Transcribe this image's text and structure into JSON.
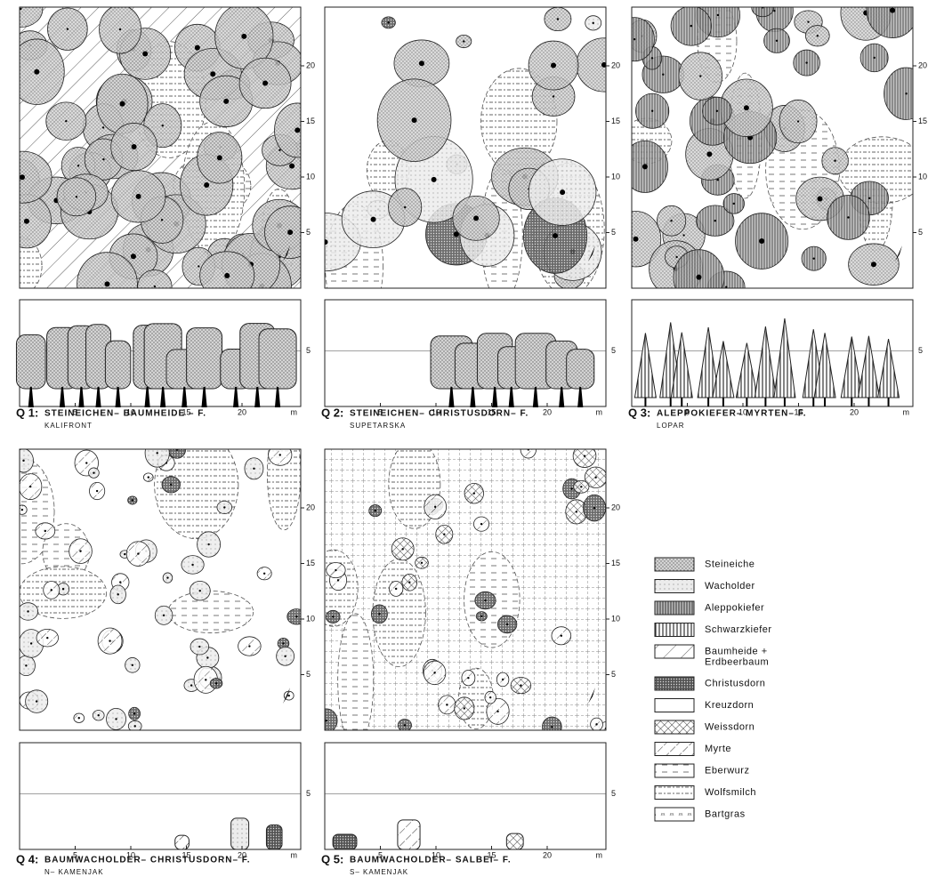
{
  "panels": [
    {
      "label": "Q 1:",
      "title": "STEINEICHEN– BAUMHEIDE – F.",
      "location": "KALIFRONT"
    },
    {
      "label": "Q 2:",
      "title": "STEINEICHEN– CHRISTUSDORN– F.",
      "location": "SUPETARSKA"
    },
    {
      "label": "Q 3:",
      "title": "ALEPPOKIEFER– MYRTEN– F.",
      "location": "LOPAR"
    },
    {
      "label": "Q 4:",
      "title": "BAUMWACHOLDER– CHRISTUSDORN– F.",
      "location": "N– KAMENJAK"
    },
    {
      "label": "Q 5:",
      "title": "BAUMWACHOLDER– SALBEI– F.",
      "location": "S– KAMENJAK"
    }
  ],
  "plan_ticks": [
    "5",
    "10",
    "15",
    "20"
  ],
  "profile_ticks": [
    "5",
    "10",
    "15",
    "20"
  ],
  "profile_unit": "m",
  "profile_height_tick": "5",
  "legend": [
    [
      "Steineiche"
    ],
    [
      "Wacholder"
    ],
    [
      "Aleppokiefer"
    ],
    [
      "Schwarzkiefer"
    ],
    [
      "Baumheide +",
      "Erdbeerbaum"
    ],
    [
      "Christusdorn"
    ],
    [
      "Kreuzdorn"
    ],
    [
      "Weissdorn"
    ],
    [
      "Myrte"
    ],
    [
      "Eberwurz"
    ],
    [
      "Wolfsmilch"
    ],
    [
      "Bartgras"
    ]
  ]
}
